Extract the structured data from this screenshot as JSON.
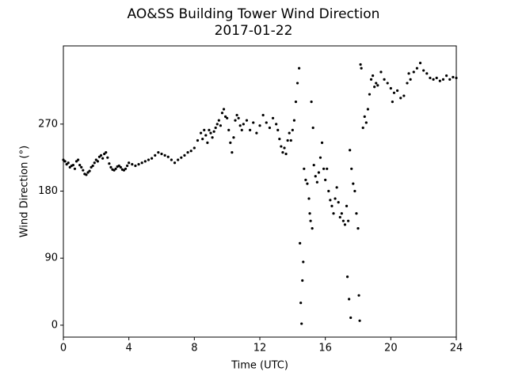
{
  "chart_data": {
    "type": "scatter",
    "title": "AO&SS Building Tower Wind Direction",
    "subtitle": "2017-01-22",
    "x_label": "Time (UTC)",
    "y_label": "Wind Direction (°)",
    "color": "#000000",
    "xlim": [
      0,
      24
    ],
    "ylim": [
      -16,
      375
    ],
    "xticks": [
      0,
      4,
      8,
      12,
      16,
      20,
      24
    ],
    "yticks": [
      0,
      90,
      180,
      270
    ],
    "x": [
      0.0,
      0.1,
      0.2,
      0.3,
      0.4,
      0.5,
      0.6,
      0.7,
      0.8,
      0.9,
      1.0,
      1.1,
      1.2,
      1.3,
      1.4,
      1.5,
      1.6,
      1.7,
      1.8,
      1.9,
      2.0,
      2.1,
      2.2,
      2.3,
      2.4,
      2.5,
      2.6,
      2.7,
      2.8,
      2.9,
      3.0,
      3.1,
      3.2,
      3.3,
      3.4,
      3.5,
      3.6,
      3.7,
      3.8,
      3.9,
      4.0,
      4.2,
      4.4,
      4.6,
      4.8,
      5.0,
      5.2,
      5.4,
      5.6,
      5.8,
      6.0,
      6.2,
      6.4,
      6.6,
      6.8,
      7.0,
      7.2,
      7.4,
      7.6,
      7.8,
      8.0,
      8.2,
      8.4,
      8.5,
      8.6,
      8.7,
      8.8,
      8.9,
      9.0,
      9.1,
      9.2,
      9.3,
      9.4,
      9.5,
      9.6,
      9.7,
      9.8,
      9.9,
      10.0,
      10.1,
      10.2,
      10.3,
      10.4,
      10.5,
      10.6,
      10.7,
      10.8,
      10.9,
      11.0,
      11.2,
      11.4,
      11.6,
      11.8,
      12.0,
      12.2,
      12.4,
      12.6,
      12.8,
      13.0,
      13.1,
      13.2,
      13.3,
      13.4,
      13.5,
      13.6,
      13.7,
      13.8,
      13.9,
      14.0,
      14.1,
      14.2,
      14.3,
      14.4,
      14.45,
      14.5,
      14.55,
      14.6,
      14.65,
      14.7,
      14.8,
      14.9,
      15.0,
      15.05,
      15.1,
      15.15,
      15.2,
      15.25,
      15.3,
      15.4,
      15.5,
      15.6,
      15.7,
      15.8,
      15.9,
      16.0,
      16.1,
      16.2,
      16.3,
      16.4,
      16.5,
      16.6,
      16.7,
      16.8,
      16.9,
      17.0,
      17.1,
      17.2,
      17.3,
      17.35,
      17.4,
      17.45,
      17.5,
      17.55,
      17.6,
      17.7,
      17.8,
      17.9,
      18.0,
      18.05,
      18.1,
      18.15,
      18.2,
      18.3,
      18.4,
      18.5,
      18.6,
      18.7,
      18.8,
      18.9,
      19.0,
      19.1,
      19.2,
      19.4,
      19.6,
      19.8,
      20.0,
      20.1,
      20.2,
      20.4,
      20.6,
      20.8,
      21.0,
      21.1,
      21.2,
      21.4,
      21.6,
      21.8,
      22.0,
      22.2,
      22.4,
      22.6,
      22.8,
      23.0,
      23.2,
      23.4,
      23.6,
      23.8,
      24.0
    ],
    "values": [
      222,
      220,
      216,
      218,
      212,
      214,
      215,
      210,
      220,
      222,
      215,
      212,
      208,
      203,
      202,
      205,
      207,
      212,
      214,
      218,
      222,
      220,
      226,
      228,
      224,
      230,
      232,
      225,
      217,
      212,
      209,
      208,
      210,
      213,
      214,
      212,
      209,
      208,
      210,
      214,
      218,
      216,
      214,
      216,
      218,
      220,
      222,
      224,
      228,
      232,
      230,
      228,
      226,
      222,
      218,
      222,
      225,
      228,
      232,
      234,
      238,
      248,
      258,
      250,
      262,
      255,
      245,
      262,
      258,
      252,
      260,
      265,
      270,
      275,
      268,
      285,
      290,
      280,
      278,
      262,
      245,
      232,
      252,
      275,
      282,
      278,
      268,
      262,
      270,
      275,
      262,
      272,
      258,
      268,
      282,
      272,
      265,
      278,
      270,
      262,
      250,
      240,
      232,
      238,
      230,
      248,
      258,
      248,
      262,
      275,
      300,
      325,
      345,
      110,
      30,
      2,
      60,
      85,
      210,
      195,
      190,
      170,
      150,
      140,
      300,
      130,
      265,
      215,
      200,
      192,
      205,
      225,
      245,
      210,
      195,
      210,
      180,
      168,
      160,
      150,
      170,
      185,
      165,
      145,
      150,
      140,
      135,
      160,
      65,
      140,
      35,
      235,
      10,
      210,
      190,
      180,
      150,
      130,
      40,
      6,
      350,
      345,
      265,
      280,
      272,
      290,
      310,
      330,
      335,
      320,
      325,
      322,
      340,
      330,
      325,
      318,
      300,
      312,
      315,
      305,
      308,
      325,
      338,
      330,
      340,
      345,
      352,
      342,
      338,
      332,
      330,
      332,
      328,
      330,
      335,
      330,
      333,
      332
    ]
  }
}
